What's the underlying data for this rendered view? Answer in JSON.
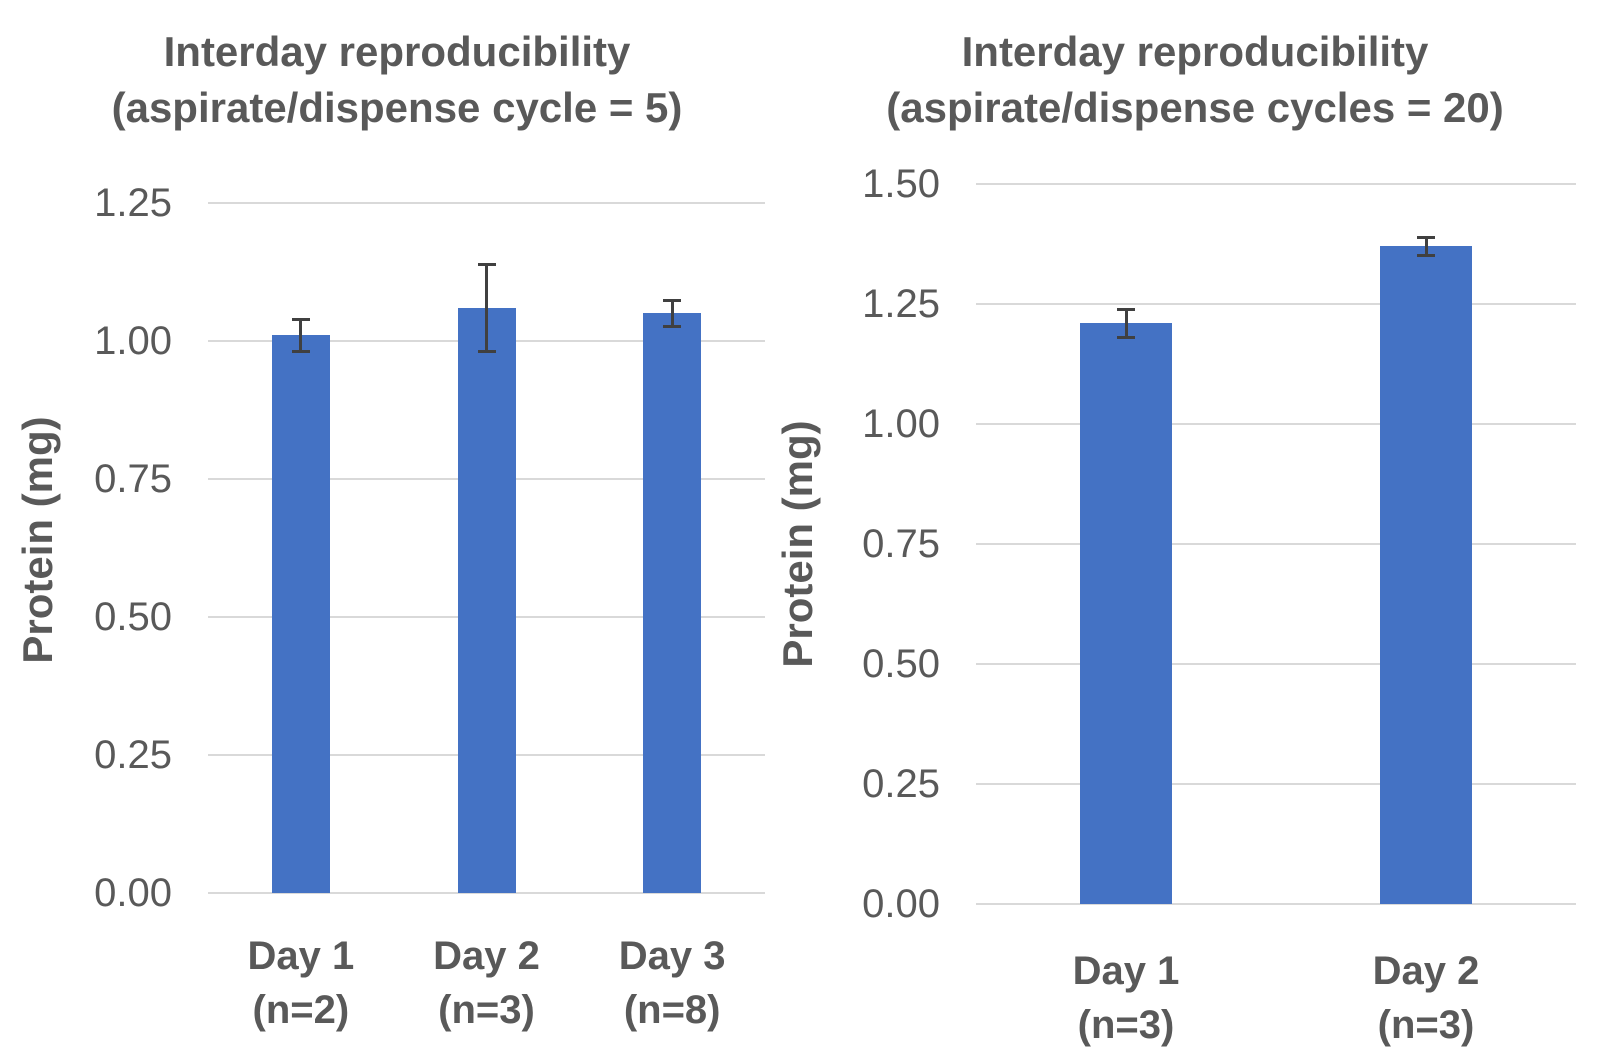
{
  "figure": {
    "background": "#ffffff",
    "description": "Two vertical bar charts with error bars, side by side"
  },
  "chart_data": [
    {
      "type": "bar",
      "title": "Interday reproducibility (aspirate/dispense cycle = 5)",
      "title_lines": [
        "Interday reproducibility",
        "(aspirate/dispense cycle = 5)"
      ],
      "ylabel": "Protein (mg)",
      "xlabel": "",
      "categories": [
        {
          "label": "Day 1",
          "sublabel": "(n=2)"
        },
        {
          "label": "Day 2",
          "sublabel": "(n=3)"
        },
        {
          "label": "Day 3",
          "sublabel": "(n=8)"
        }
      ],
      "values": [
        1.01,
        1.06,
        1.05
      ],
      "errors": [
        0.03,
        0.08,
        0.025
      ],
      "ylim": [
        0,
        1.25
      ],
      "yticks": [
        0,
        0.25,
        0.5,
        0.75,
        1.0,
        1.25
      ],
      "ytick_labels": [
        "0.00",
        "0.25",
        "0.50",
        "0.75",
        "1.00",
        "1.25"
      ],
      "grid": true,
      "legend": false,
      "bar_color": "#4472C4",
      "error_bar_color": "#404040",
      "gridline_color": "#d9d9d9",
      "text_color": "#595959"
    },
    {
      "type": "bar",
      "title": "Interday reproducibility (aspirate/dispense cycles = 20)",
      "title_lines": [
        "Interday reproducibility",
        "(aspirate/dispense cycles = 20)"
      ],
      "ylabel": "Protein (mg)",
      "xlabel": "",
      "categories": [
        {
          "label": "Day 1",
          "sublabel": "(n=3)"
        },
        {
          "label": "Day 2",
          "sublabel": "(n=3)"
        }
      ],
      "values": [
        1.21,
        1.37
      ],
      "errors": [
        0.03,
        0.02
      ],
      "ylim": [
        0,
        1.5
      ],
      "yticks": [
        0,
        0.25,
        0.5,
        0.75,
        1.0,
        1.25,
        1.5
      ],
      "ytick_labels": [
        "0.00",
        "0.25",
        "0.50",
        "0.75",
        "1.00",
        "1.25",
        "1.50"
      ],
      "grid": true,
      "legend": false,
      "bar_color": "#4472C4",
      "error_bar_color": "#404040",
      "gridline_color": "#d9d9d9",
      "text_color": "#595959"
    }
  ]
}
